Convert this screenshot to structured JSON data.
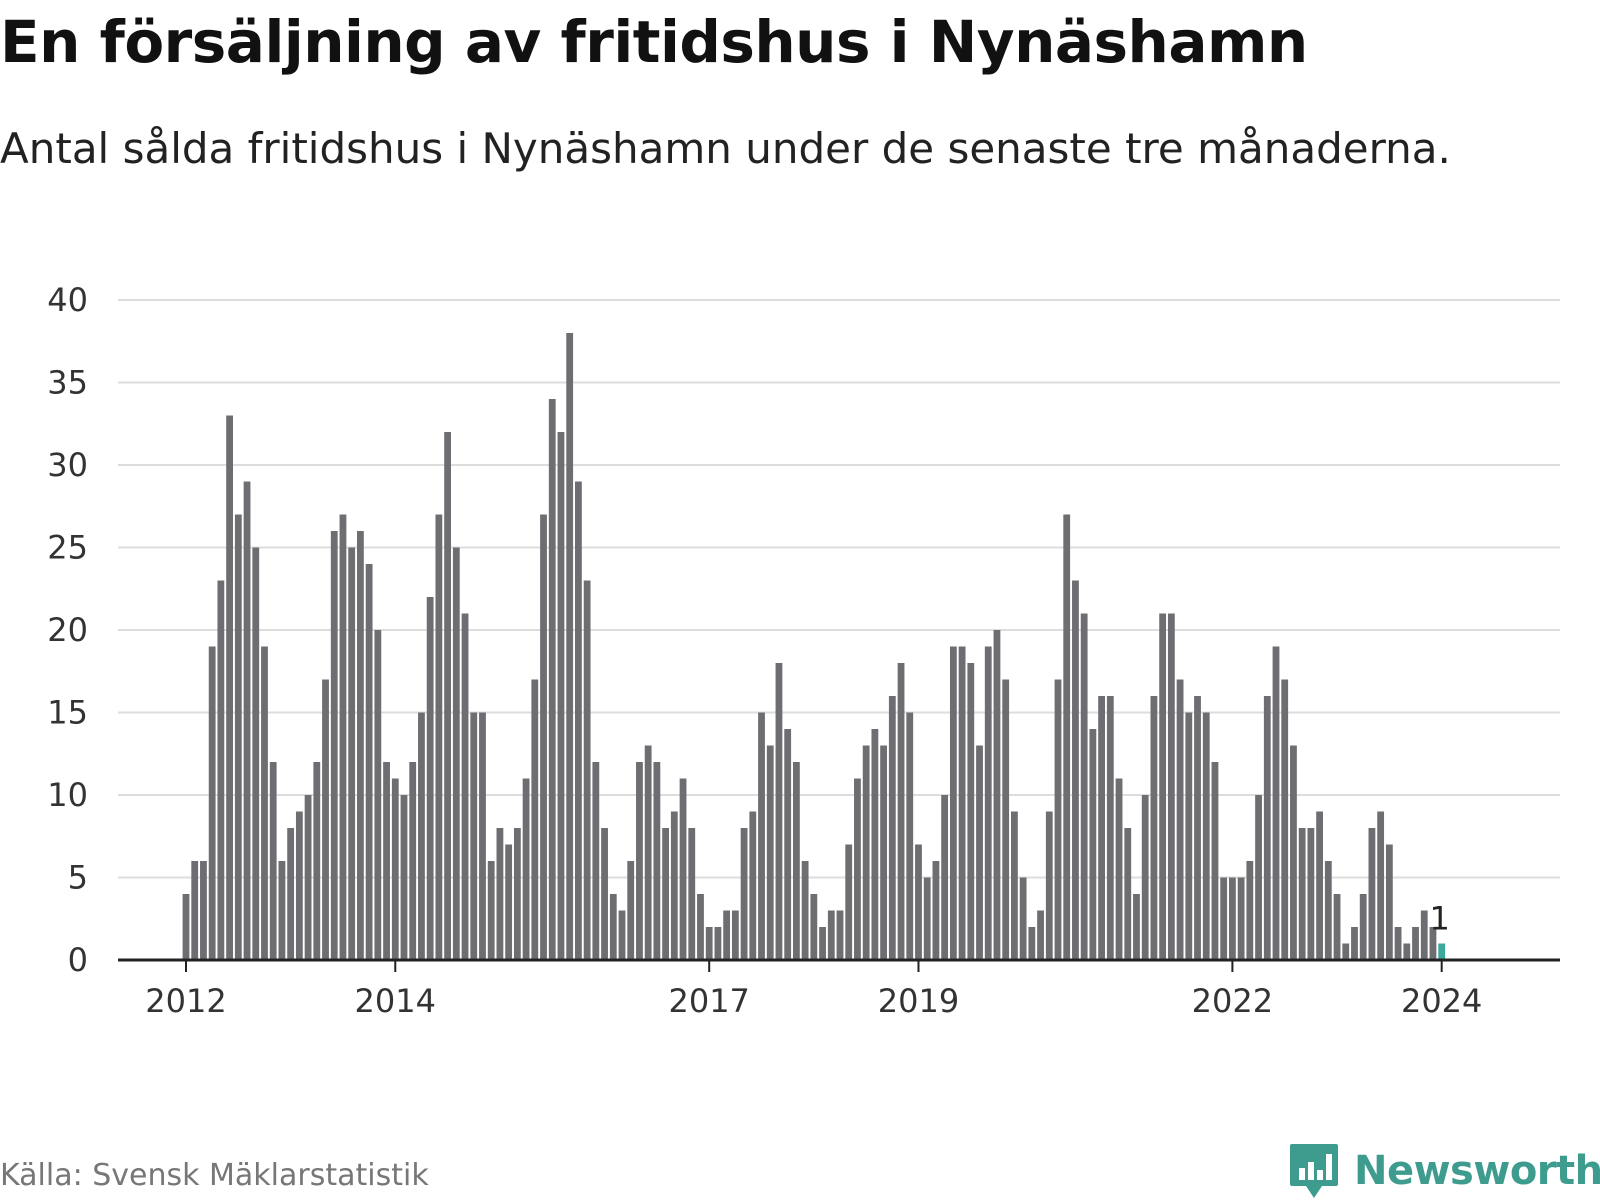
{
  "header": {
    "title": "En försäljning av fritidshus i Nynäshamn",
    "subtitle": "Antal sålda fritidshus i Nynäshamn under de senaste tre månaderna."
  },
  "footer": {
    "source": "Källa: Svensk Mäklarstatistik",
    "brand": "Newsworthy"
  },
  "colors": {
    "bar": "#6d6d72",
    "highlight": "#3aa89a",
    "grid": "#dddddd",
    "axis": "#222222",
    "brand": "#3e9c8f"
  },
  "chart_data": {
    "type": "bar",
    "title": "En försäljning av fritidshus i Nynäshamn",
    "subtitle": "Antal sålda fritidshus i Nynäshamn under de senaste tre månaderna.",
    "xlabel": "",
    "ylabel": "",
    "ylim": [
      0,
      40
    ],
    "yticks": [
      0,
      5,
      10,
      15,
      20,
      25,
      30,
      35,
      40
    ],
    "grid": true,
    "x_start": "2012-01",
    "x_tick_labels": [
      "2012",
      "2014",
      "2017",
      "2019",
      "2022",
      "2024"
    ],
    "x_tick_months": [
      "2012-01",
      "2014-01",
      "2017-01",
      "2019-01",
      "2022-01",
      "2024-01"
    ],
    "values": [
      4,
      6,
      6,
      19,
      23,
      33,
      27,
      29,
      25,
      19,
      12,
      6,
      8,
      9,
      10,
      12,
      17,
      26,
      27,
      25,
      26,
      24,
      20,
      12,
      11,
      10,
      12,
      15,
      22,
      27,
      32,
      25,
      21,
      15,
      15,
      6,
      8,
      7,
      8,
      11,
      17,
      27,
      34,
      32,
      38,
      29,
      23,
      12,
      8,
      4,
      3,
      6,
      12,
      13,
      12,
      8,
      9,
      11,
      8,
      4,
      2,
      2,
      3,
      3,
      8,
      9,
      15,
      13,
      18,
      14,
      12,
      6,
      4,
      2,
      3,
      3,
      7,
      11,
      13,
      14,
      13,
      16,
      18,
      15,
      7,
      5,
      6,
      10,
      19,
      19,
      18,
      13,
      19,
      20,
      17,
      9,
      5,
      2,
      3,
      9,
      17,
      27,
      23,
      21,
      14,
      16,
      16,
      11,
      8,
      4,
      10,
      16,
      21,
      21,
      17,
      15,
      16,
      15,
      12,
      5,
      5,
      5,
      6,
      10,
      16,
      19,
      17,
      13,
      8,
      8,
      9,
      6,
      4,
      1,
      2,
      4,
      8,
      9,
      7,
      2,
      1,
      2,
      3,
      2,
      1
    ],
    "highlight": {
      "month": "2024-01",
      "value": 1,
      "label": "1"
    }
  }
}
